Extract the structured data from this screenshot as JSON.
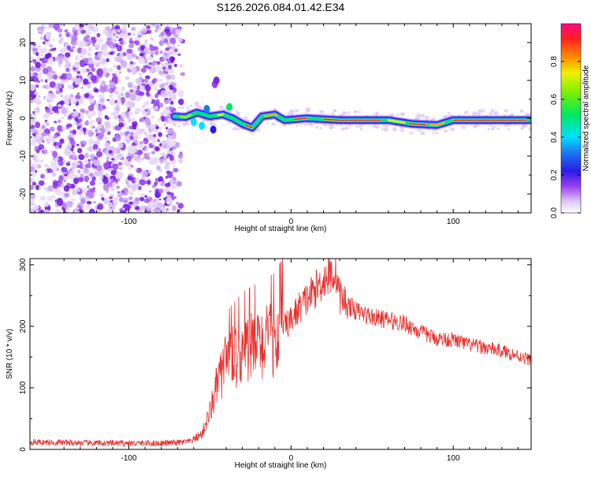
{
  "title": "S126.2026.084.01.42.E34",
  "chart_data": [
    {
      "type": "heatmap",
      "name": "spectrogram",
      "xlabel": "Height of straight line (km)",
      "ylabel": "Frequency (Hz)",
      "xlim": [
        -161,
        148
      ],
      "ylim": [
        -25,
        25
      ],
      "xticks": [
        -100,
        0,
        100
      ],
      "xtick_labels": [
        "-100",
        "0",
        "100"
      ],
      "yticks": [
        -20,
        -10,
        0,
        10,
        20
      ],
      "ytick_labels": [
        "-20",
        "-10",
        "0",
        "10",
        "20"
      ],
      "colorbar": {
        "label": "Normalized spectral amplitude",
        "range": [
          0,
          1
        ],
        "ticks": [
          0.0,
          0.2,
          0.4,
          0.6,
          0.8
        ],
        "tick_labels": [
          "0.0",
          "0.2",
          "0.4",
          "0.6",
          "0.8"
        ]
      },
      "noise_region_x": [
        -161,
        -72
      ],
      "signal_track": [
        {
          "x": -72,
          "f": 0.5
        },
        {
          "x": -65,
          "f": 0.3
        },
        {
          "x": -58,
          "f": 1.5
        },
        {
          "x": -50,
          "f": 0.5
        },
        {
          "x": -42,
          "f": 1.0
        },
        {
          "x": -36,
          "f": 0.0
        },
        {
          "x": -30,
          "f": -1.5
        },
        {
          "x": -24,
          "f": -2.5
        },
        {
          "x": -18,
          "f": 0.5
        },
        {
          "x": -10,
          "f": 1.0
        },
        {
          "x": -4,
          "f": -0.5
        },
        {
          "x": 10,
          "f": 0.0
        },
        {
          "x": 30,
          "f": -0.5
        },
        {
          "x": 60,
          "f": -0.5
        },
        {
          "x": 75,
          "f": -1.5
        },
        {
          "x": 90,
          "f": -1.8
        },
        {
          "x": 100,
          "f": -0.5
        },
        {
          "x": 148,
          "f": -0.5
        }
      ]
    },
    {
      "type": "line",
      "name": "snr",
      "xlabel": "Height of straight line (km)",
      "ylabel": "SNR (10 * v/v)",
      "xlim": [
        -161,
        148
      ],
      "ylim": [
        0,
        310
      ],
      "xticks": [
        -100,
        0,
        100
      ],
      "xtick_labels": [
        "-100",
        "0",
        "100"
      ],
      "yticks": [
        0,
        100,
        200,
        300
      ],
      "ytick_labels": [
        "0",
        "100",
        "200",
        "300"
      ],
      "series": [
        {
          "name": "SNR",
          "color": "#e8312e",
          "x": [
            -161,
            -140,
            -120,
            -100,
            -80,
            -70,
            -62,
            -55,
            -50,
            -45,
            -40,
            -35,
            -30,
            -25,
            -20,
            -15,
            -10,
            -5,
            0,
            5,
            10,
            15,
            20,
            25,
            28,
            30,
            35,
            40,
            50,
            60,
            70,
            80,
            90,
            100,
            110,
            120,
            130,
            140,
            148
          ],
          "values": [
            12,
            11,
            10,
            10,
            10,
            11,
            13,
            25,
            60,
            110,
            140,
            150,
            160,
            165,
            170,
            175,
            180,
            195,
            210,
            230,
            245,
            260,
            275,
            285,
            285,
            250,
            235,
            225,
            215,
            210,
            205,
            190,
            180,
            178,
            170,
            165,
            160,
            152,
            145
          ]
        }
      ]
    }
  ]
}
